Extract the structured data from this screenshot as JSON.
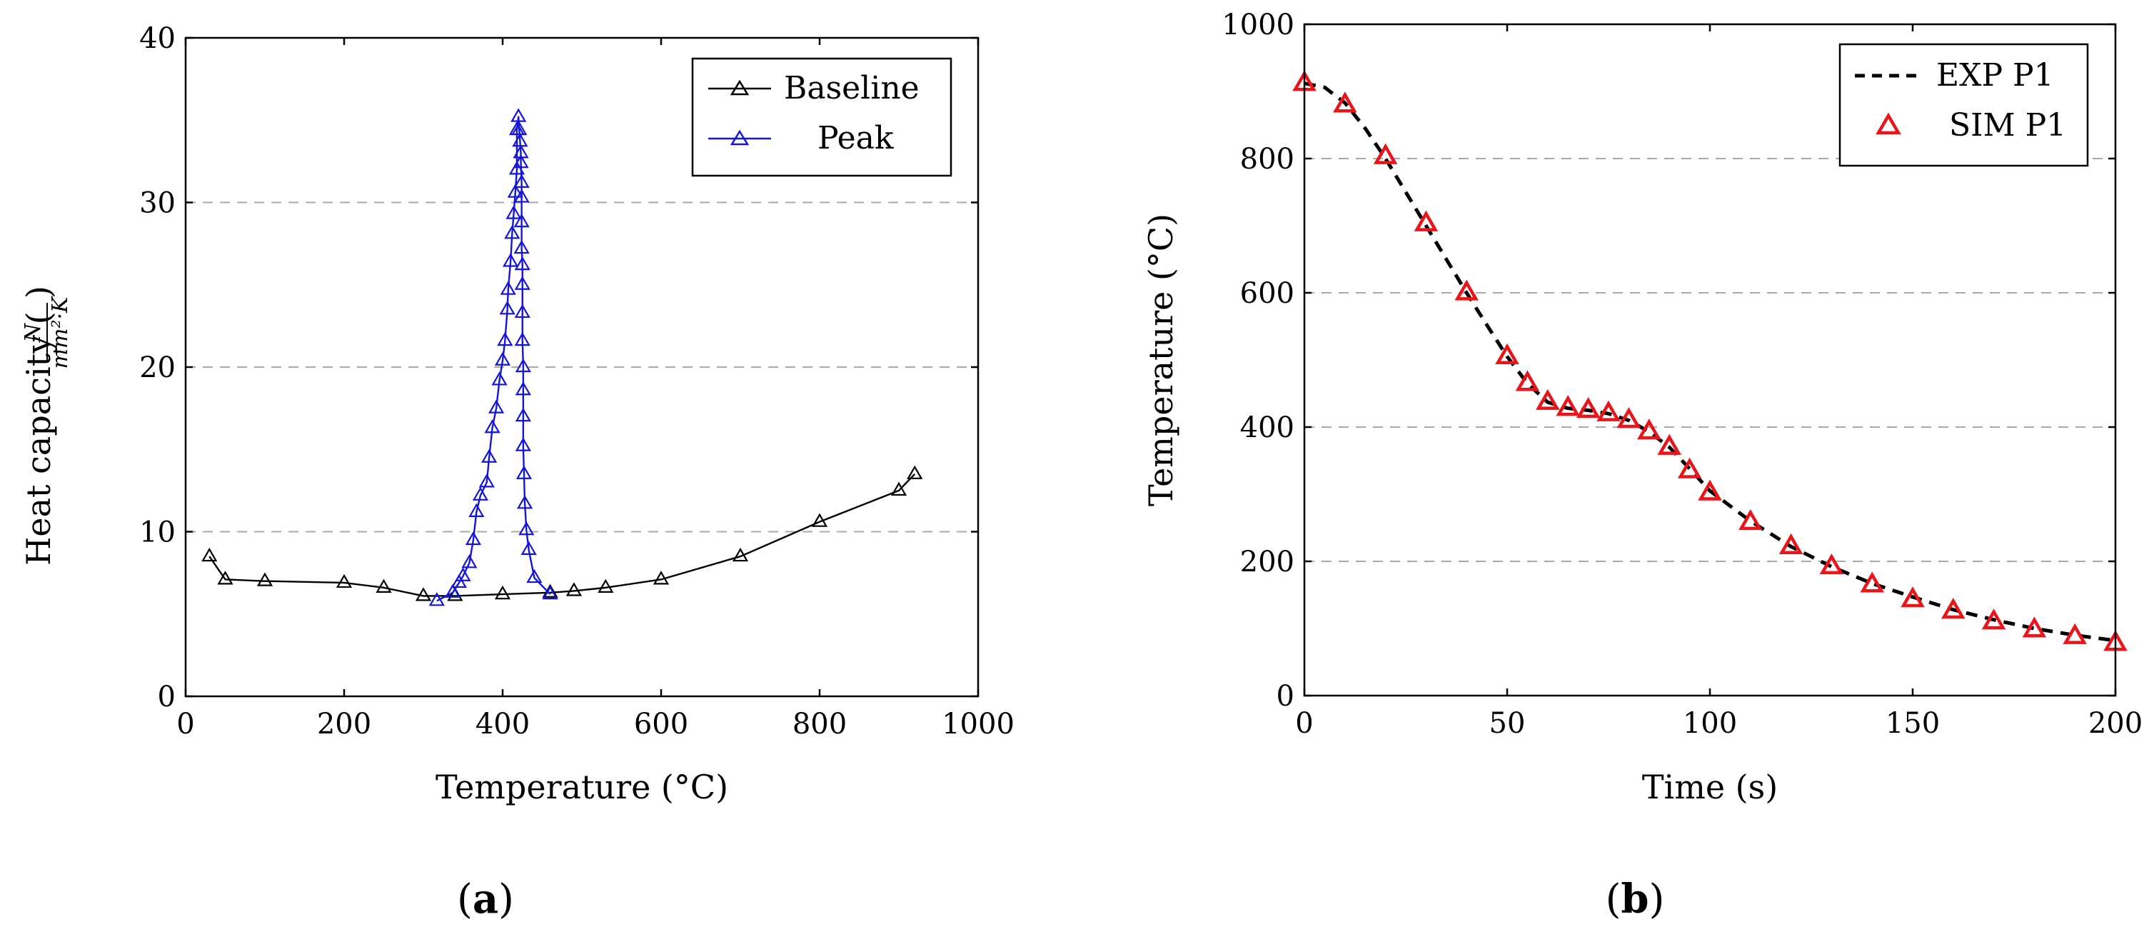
{
  "chart_data": [
    {
      "id": "a",
      "type": "line",
      "caption": "(a)",
      "caption_letter": "a",
      "xlabel": "Temperature (°C)",
      "ylabel_main": "Heat capacity (",
      "ylabel_num": "N",
      "ylabel_den": "mm²·K",
      "ylabel_close": ")",
      "xlim": [
        0,
        1000
      ],
      "ylim": [
        0,
        40
      ],
      "xticks": [
        0,
        200,
        400,
        600,
        800,
        1000
      ],
      "yticks": [
        0,
        10,
        20,
        30,
        40
      ],
      "y_grid": [
        10,
        20,
        30
      ],
      "legend_position": "top-right",
      "series": [
        {
          "name": "Baseline",
          "color": "#000000",
          "marker": "triangle",
          "line": "solid",
          "x": [
            30,
            50,
            100,
            200,
            250,
            300,
            340,
            400,
            460,
            490,
            530,
            600,
            700,
            800,
            900,
            920
          ],
          "y": [
            8.5,
            7.1,
            7.0,
            6.9,
            6.6,
            6.1,
            6.1,
            6.2,
            6.3,
            6.4,
            6.6,
            7.1,
            8.5,
            10.6,
            12.5,
            13.5
          ]
        },
        {
          "name": "Peak",
          "color": "#1515d8",
          "marker": "triangle",
          "line": "solid",
          "x": [
            317,
            337,
            345,
            350,
            358,
            363,
            367,
            372,
            380,
            383,
            387,
            392,
            396,
            400,
            403,
            406,
            407,
            410,
            412,
            414,
            416,
            418,
            418,
            420,
            421,
            422,
            423,
            423,
            424,
            424,
            424,
            424,
            425,
            425,
            425,
            425,
            426,
            426,
            426,
            426,
            427,
            428,
            430,
            433,
            440,
            460
          ],
          "y": [
            5.8,
            6.3,
            6.9,
            7.3,
            8.1,
            9.5,
            11.2,
            12.2,
            13.0,
            14.5,
            16.3,
            17.5,
            19.2,
            20.4,
            21.6,
            23.5,
            24.7,
            26.4,
            28.1,
            29.3,
            30.6,
            32.0,
            34.4,
            35.2,
            34.4,
            33.7,
            33.0,
            32.4,
            31.2,
            30.3,
            28.8,
            27.2,
            26.2,
            25.0,
            23.3,
            21.6,
            20.0,
            18.6,
            17.0,
            15.2,
            13.5,
            11.7,
            10.1,
            8.9,
            7.2,
            6.2
          ]
        }
      ]
    },
    {
      "id": "b",
      "type": "line",
      "caption": "(b)",
      "caption_letter": "b",
      "xlabel": "Time (s)",
      "ylabel": "Temperature (°C)",
      "xlim": [
        0,
        200
      ],
      "ylim": [
        0,
        1000
      ],
      "xticks": [
        0,
        50,
        100,
        150,
        200
      ],
      "yticks": [
        0,
        200,
        400,
        600,
        800,
        1000
      ],
      "y_grid": [
        200,
        400,
        600,
        800
      ],
      "legend_position": "top-right",
      "series": [
        {
          "name": "EXP P1",
          "color": "#000000",
          "marker": "none",
          "line": "dashed",
          "x": [
            0,
            5,
            10,
            15,
            20,
            25,
            30,
            35,
            40,
            45,
            50,
            55,
            60,
            65,
            70,
            75,
            80,
            85,
            90,
            95,
            100,
            110,
            120,
            130,
            140,
            150,
            160,
            170,
            180,
            190,
            200
          ],
          "y": [
            912,
            906,
            883,
            845,
            800,
            750,
            700,
            650,
            600,
            552,
            505,
            465,
            437,
            428,
            425,
            420,
            410,
            393,
            370,
            338,
            305,
            260,
            222,
            192,
            167,
            147,
            128,
            113,
            100,
            90,
            82
          ]
        },
        {
          "name": "SIM P1",
          "color": "#e8161b",
          "marker": "open-triangle",
          "line": "none",
          "x": [
            0,
            10,
            20,
            30,
            40,
            50,
            55,
            60,
            65,
            70,
            75,
            80,
            85,
            90,
            95,
            100,
            110,
            120,
            130,
            140,
            150,
            160,
            170,
            180,
            190,
            200
          ],
          "y": [
            912,
            880,
            803,
            703,
            600,
            505,
            465,
            437,
            428,
            425,
            420,
            410,
            393,
            370,
            335,
            302,
            258,
            222,
            192,
            165,
            143,
            126,
            110,
            98,
            88,
            78
          ]
        }
      ]
    }
  ]
}
